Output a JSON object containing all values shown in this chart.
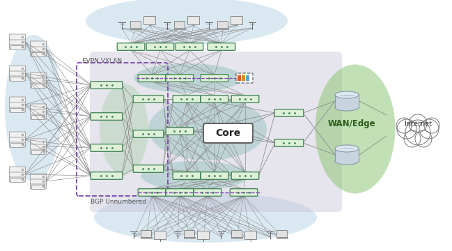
{
  "bg_color": "#ffffff",
  "bgp_label": "BGP Unnumbered",
  "evpn_label": "EVPN VXLAN",
  "core_label": "Core",
  "wan_label": "WAN/Edge",
  "internet_label": "Internet",
  "campus_blue": "#aecde0",
  "main_gray": "#c8c4d8",
  "teal_color": "#7db8b0",
  "green_wan": "#90c878",
  "evpn_purple": "#7744aa",
  "router_border": "#3a8050",
  "router_fill": "#dff0d8",
  "line_color": "#888888",
  "purple_dash": "#8844bb",
  "server_fill": "#f0f0f0",
  "server_border": "#888888",
  "cylinder_fill": "#c8d4e0",
  "cylinder_top": "#dde8f0",
  "cylinder_border": "#8899aa"
}
